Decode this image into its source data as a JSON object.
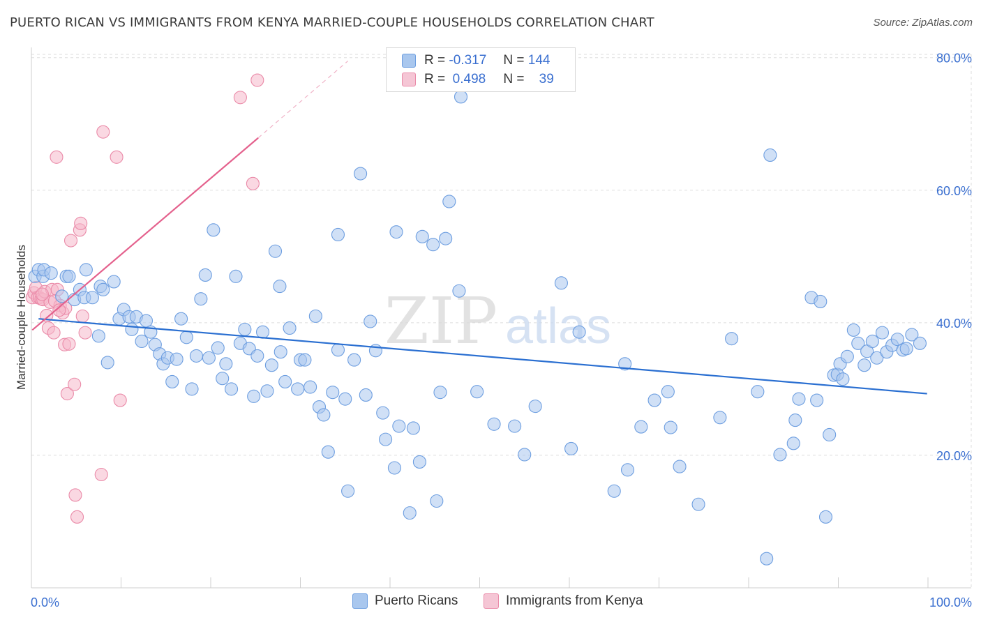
{
  "header": {
    "title": "PUERTO RICAN VS IMMIGRANTS FROM KENYA MARRIED-COUPLE HOUSEHOLDS CORRELATION CHART",
    "source": "Source: ZipAtlas.com"
  },
  "legend": {
    "rows": [
      {
        "r_label": "R =",
        "r_value": "-0.317",
        "n_label": "N =",
        "n_value": "144"
      },
      {
        "r_label": "R =",
        "r_value": "0.498",
        "n_label": "N =",
        "n_value": "39"
      }
    ]
  },
  "watermark": {
    "zip": "ZIP",
    "atlas": "atlas"
  },
  "colors": {
    "blue_fill": "#a9c7ee",
    "blue_stroke": "#6d9ee0",
    "blue_line": "#2a6fd1",
    "pink_fill": "#f5b8cb",
    "pink_stroke": "#ea8aa8",
    "pink_line": "#e4618d",
    "axis_label": "#3a6fd0",
    "grid": "#dedede"
  },
  "chart_data": {
    "type": "scatter",
    "title": "PUERTO RICAN VS IMMIGRANTS FROM KENYA MARRIED-COUPLE HOUSEHOLDS CORRELATION CHART",
    "xlabel": "",
    "ylabel": "Married-couple Households",
    "xlim": [
      0,
      100
    ],
    "ylim": [
      0,
      82
    ],
    "x_tick_labels": [
      "0.0%",
      "100.0%"
    ],
    "y_ticks": [
      20,
      40,
      60,
      80
    ],
    "y_tick_labels": [
      "20.0%",
      "40.0%",
      "60.0%",
      "80.0%"
    ],
    "grid": true,
    "legend_position": "bottom",
    "series": [
      {
        "name": "Puerto Ricans",
        "color": "#a9c7ee",
        "trend": {
          "x": [
            0.8,
            99.9
          ],
          "y": [
            40.6,
            29.3
          ]
        },
        "points": [
          [
            0.4,
            47
          ],
          [
            0.8,
            48
          ],
          [
            1.3,
            47
          ],
          [
            1.4,
            48
          ],
          [
            2.2,
            47.5
          ],
          [
            3.4,
            44
          ],
          [
            3.9,
            47
          ],
          [
            4.2,
            47
          ],
          [
            4.8,
            43.5
          ],
          [
            5.4,
            45
          ],
          [
            5.9,
            43.8
          ],
          [
            6.1,
            48
          ],
          [
            6.8,
            43.8
          ],
          [
            7.5,
            38
          ],
          [
            7.7,
            45.5
          ],
          [
            8,
            45
          ],
          [
            8.5,
            34
          ],
          [
            9.2,
            46.2
          ],
          [
            9.8,
            40.6
          ],
          [
            10.3,
            42
          ],
          [
            10.9,
            40.9
          ],
          [
            11.2,
            39
          ],
          [
            11.7,
            40.9
          ],
          [
            12.3,
            37.2
          ],
          [
            12.8,
            40.3
          ],
          [
            13.3,
            38.6
          ],
          [
            13.8,
            36.7
          ],
          [
            14.3,
            35.3
          ],
          [
            14.7,
            33.8
          ],
          [
            15.2,
            34.7
          ],
          [
            15.7,
            31.1
          ],
          [
            16.2,
            34.5
          ],
          [
            16.7,
            40.6
          ],
          [
            17.3,
            37.8
          ],
          [
            17.9,
            30
          ],
          [
            18.4,
            35
          ],
          [
            18.9,
            43.6
          ],
          [
            19.4,
            47.2
          ],
          [
            19.8,
            34.7
          ],
          [
            20.3,
            54
          ],
          [
            20.8,
            36.2
          ],
          [
            21.3,
            31.6
          ],
          [
            21.7,
            33.8
          ],
          [
            22.3,
            30
          ],
          [
            22.8,
            47
          ],
          [
            23.3,
            36.9
          ],
          [
            23.8,
            39
          ],
          [
            24.3,
            36.1
          ],
          [
            24.8,
            28.9
          ],
          [
            25.2,
            35
          ],
          [
            25.8,
            38.6
          ],
          [
            26.3,
            29.7
          ],
          [
            26.8,
            33.6
          ],
          [
            27.2,
            50.8
          ],
          [
            27.7,
            45.5
          ],
          [
            27.8,
            35.6
          ],
          [
            28.3,
            31.1
          ],
          [
            28.8,
            39.2
          ],
          [
            29.7,
            30
          ],
          [
            30,
            34.4
          ],
          [
            30.5,
            34.4
          ],
          [
            31.1,
            30.3
          ],
          [
            31.7,
            41
          ],
          [
            32.1,
            27.3
          ],
          [
            32.6,
            26.1
          ],
          [
            33.1,
            20.5
          ],
          [
            33.6,
            29.5
          ],
          [
            34.2,
            53.3
          ],
          [
            34.2,
            35.9
          ],
          [
            35,
            28.5
          ],
          [
            35.3,
            14.6
          ],
          [
            36,
            34.4
          ],
          [
            36.7,
            62.5
          ],
          [
            37.3,
            29.1
          ],
          [
            37.8,
            40.2
          ],
          [
            38.4,
            35.8
          ],
          [
            39.2,
            26.4
          ],
          [
            39.5,
            22.4
          ],
          [
            40.5,
            18.1
          ],
          [
            40.7,
            53.7
          ],
          [
            41,
            24.4
          ],
          [
            42.2,
            11.3
          ],
          [
            42.6,
            24.1
          ],
          [
            43.3,
            19
          ],
          [
            43.6,
            53
          ],
          [
            44.8,
            51.8
          ],
          [
            45.2,
            13.1
          ],
          [
            45.6,
            29.5
          ],
          [
            46.2,
            52.7
          ],
          [
            46.6,
            58.3
          ],
          [
            47.7,
            44.8
          ],
          [
            47.9,
            74.1
          ],
          [
            49.7,
            29.6
          ],
          [
            51.6,
            24.7
          ],
          [
            53.9,
            24.4
          ],
          [
            55,
            20.1
          ],
          [
            56.2,
            27.4
          ],
          [
            59.1,
            46
          ],
          [
            60.2,
            21
          ],
          [
            61.1,
            38.6
          ],
          [
            65,
            14.6
          ],
          [
            66.2,
            33.8
          ],
          [
            66.5,
            17.8
          ],
          [
            68,
            24.3
          ],
          [
            69.5,
            28.3
          ],
          [
            71,
            29.6
          ],
          [
            71.3,
            24.2
          ],
          [
            72.3,
            18.3
          ],
          [
            74.4,
            12.6
          ],
          [
            76.8,
            25.7
          ],
          [
            78.1,
            37.6
          ],
          [
            81,
            29.6
          ],
          [
            82,
            4.4
          ],
          [
            82.4,
            65.3
          ],
          [
            83.5,
            20.1
          ],
          [
            85,
            21.8
          ],
          [
            85.2,
            25.3
          ],
          [
            85.6,
            28.5
          ],
          [
            87,
            43.8
          ],
          [
            87.6,
            28.3
          ],
          [
            88,
            43.2
          ],
          [
            88.6,
            10.7
          ],
          [
            89,
            23.1
          ],
          [
            89.5,
            32.1
          ],
          [
            89.9,
            32.2
          ],
          [
            90.2,
            33.8
          ],
          [
            90.5,
            31.5
          ],
          [
            91,
            34.9
          ],
          [
            91.7,
            38.9
          ],
          [
            92.2,
            36.9
          ],
          [
            92.9,
            33.6
          ],
          [
            93.2,
            35.7
          ],
          [
            93.8,
            37.2
          ],
          [
            94.3,
            34.7
          ],
          [
            94.9,
            38.5
          ],
          [
            95.4,
            35.6
          ],
          [
            96,
            36.6
          ],
          [
            96.6,
            37.5
          ],
          [
            97.2,
            35.9
          ],
          [
            97.6,
            36.1
          ],
          [
            98.2,
            38.2
          ],
          [
            99.1,
            36.9
          ]
        ]
      },
      {
        "name": "Immigrants from Kenya",
        "color": "#f5b8cb",
        "trend": {
          "x": [
            0.1,
            25.3
          ],
          "y": [
            38.9,
            67.9
          ],
          "dashed_extension": {
            "x": [
              25.3,
              35.3
            ],
            "y": [
              67.9,
              79.5
            ]
          }
        },
        "points": [
          [
            0.1,
            43.8
          ],
          [
            0.3,
            44.5
          ],
          [
            0.5,
            45.3
          ],
          [
            0.7,
            43.8
          ],
          [
            0.9,
            43.8
          ],
          [
            1.1,
            43.6
          ],
          [
            1.3,
            43.5
          ],
          [
            1.5,
            44.7
          ],
          [
            1.7,
            41.1
          ],
          [
            1.9,
            39.2
          ],
          [
            2.1,
            43.1
          ],
          [
            2.3,
            45
          ],
          [
            2.5,
            38.5
          ],
          [
            2.8,
            65
          ],
          [
            2.9,
            45
          ],
          [
            3.2,
            42.6
          ],
          [
            3.5,
            41.5
          ],
          [
            3.7,
            36.7
          ],
          [
            3.8,
            42.2
          ],
          [
            4,
            29.3
          ],
          [
            4.2,
            36.8
          ],
          [
            4.4,
            52.4
          ],
          [
            4.8,
            30.7
          ],
          [
            4.9,
            14
          ],
          [
            5.1,
            10.7
          ],
          [
            5.4,
            54
          ],
          [
            5.5,
            55
          ],
          [
            5.7,
            41
          ],
          [
            6,
            38.5
          ],
          [
            7.8,
            17.1
          ],
          [
            8,
            68.8
          ],
          [
            9.5,
            65
          ],
          [
            9.9,
            28.3
          ],
          [
            23.3,
            74
          ],
          [
            24.7,
            61
          ],
          [
            25.2,
            76.6
          ],
          [
            2.6,
            43.3
          ],
          [
            1.2,
            44.3
          ],
          [
            3.1,
            41.9
          ]
        ]
      }
    ]
  }
}
